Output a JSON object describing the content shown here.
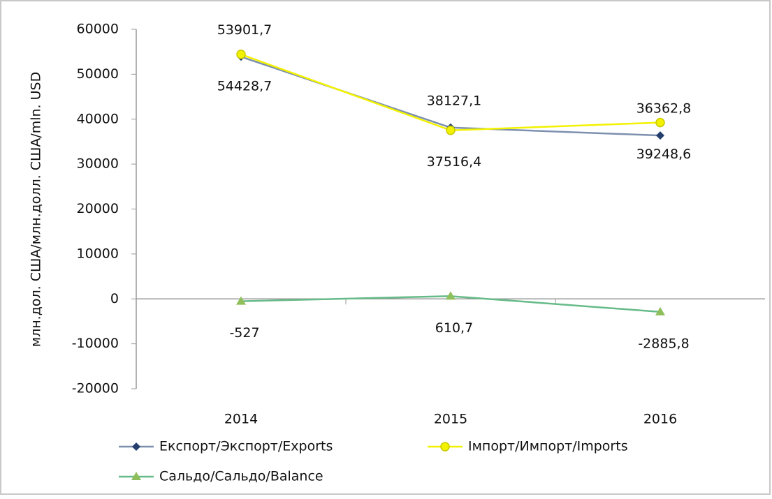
{
  "chart_data": {
    "type": "line",
    "y_axis_label": "млн.дол. США/млн.долл. США/mln. USD",
    "categories": [
      "2014",
      "2015",
      "2016"
    ],
    "series": [
      {
        "name": "Експорт/Экспорт/Exports",
        "color": "#3f5d8e",
        "marker": "diamond",
        "label_position": "above",
        "values": [
          53901.7,
          38127.1,
          36362.8
        ],
        "value_labels": [
          "53901,7",
          "38127,1",
          "36362,8"
        ]
      },
      {
        "name": "Імпорт/Импорт/Imports",
        "color": "#f2f200",
        "marker": "circle",
        "label_position": "below",
        "values": [
          54428.7,
          37516.4,
          39248.6
        ],
        "value_labels": [
          "54428,7",
          "37516,4",
          "39248,6"
        ]
      },
      {
        "name": "Сальдо/Сальдо/Balance",
        "color": "#66bb88",
        "marker": "triangle",
        "label_position": "below",
        "values": [
          -527,
          610.7,
          -2885.8
        ],
        "value_labels": [
          "-527",
          "610,7",
          "-2885,8"
        ]
      }
    ],
    "ylim": [
      -20000,
      60000
    ],
    "yticks": [
      -20000,
      -10000,
      0,
      10000,
      20000,
      30000,
      40000,
      50000,
      60000
    ],
    "grid": false,
    "legend": "bottom"
  }
}
